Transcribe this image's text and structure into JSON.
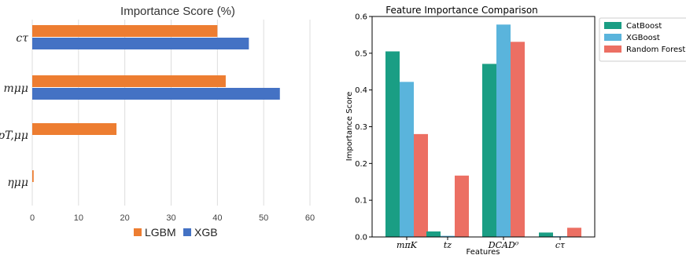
{
  "chart_data": [
    {
      "type": "bar",
      "orientation": "horizontal",
      "title": "Importance Score (%)",
      "xlabel": "",
      "ylabel": "",
      "categories": [
        "cτ",
        "mμμ",
        "pT,μμ",
        "ημμ"
      ],
      "series": [
        {
          "name": "LGBM",
          "color": "#ed7d31",
          "values": [
            40,
            41.8,
            18.2,
            0.3
          ]
        },
        {
          "name": "XGB",
          "color": "#4472c4",
          "values": [
            46.8,
            53.5,
            0,
            0
          ]
        }
      ],
      "xlim": [
        0,
        60
      ],
      "xticks": [
        "0",
        "10",
        "20",
        "30",
        "40",
        "50",
        "60"
      ],
      "grid": true,
      "legend": "bottom"
    },
    {
      "type": "bar",
      "orientation": "vertical",
      "title": "Feature Importance Comparison",
      "xlabel": "Features",
      "ylabel": "Importance Score",
      "categories": [
        "mπK",
        "tz",
        "DCAD⁰",
        "cτ"
      ],
      "series": [
        {
          "name": "CatBoost",
          "color": "#1a9e84",
          "values": [
            0.505,
            0.015,
            0.471,
            0.012
          ]
        },
        {
          "name": "XGBoost",
          "color": "#5ab4dc",
          "values": [
            0.422,
            0.003,
            0.578,
            0.002
          ]
        },
        {
          "name": "Random Forest",
          "color": "#ec6f63",
          "values": [
            0.28,
            0.167,
            0.531,
            0.025
          ]
        }
      ],
      "ylim": [
        0,
        0.6
      ],
      "yticks": [
        "0.0",
        "0.1",
        "0.2",
        "0.3",
        "0.4",
        "0.5",
        "0.6"
      ],
      "grid": false,
      "legend": "upper-right outside"
    }
  ]
}
